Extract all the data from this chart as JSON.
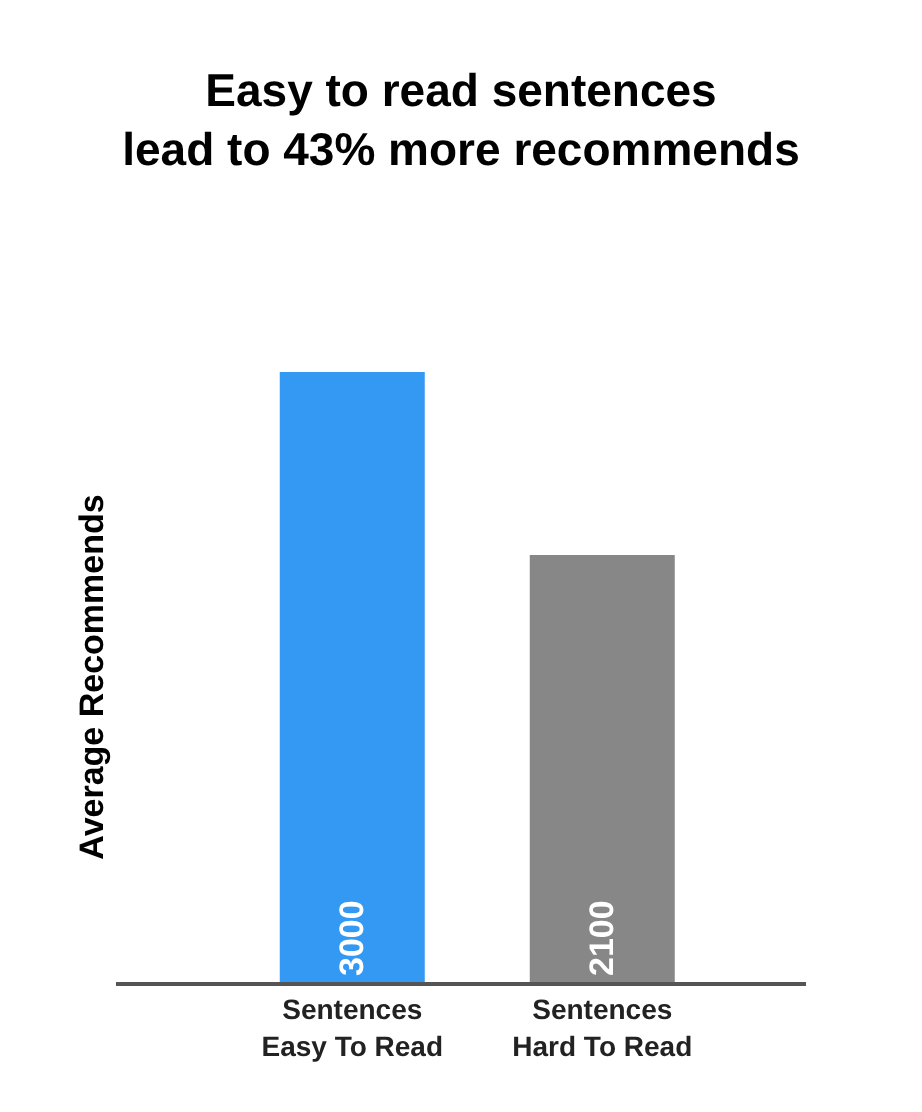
{
  "chart_data": {
    "type": "bar",
    "title": "Easy to read sentences\nlead to 43% more recommends",
    "ylabel": "Average Recommends",
    "categories": [
      "Sentences\nEasy To Read",
      "Sentences\nHard To Read"
    ],
    "values": [
      3000,
      2100
    ],
    "colors": [
      "#3399f3",
      "#878787"
    ],
    "data_labels": true,
    "legend": false
  }
}
